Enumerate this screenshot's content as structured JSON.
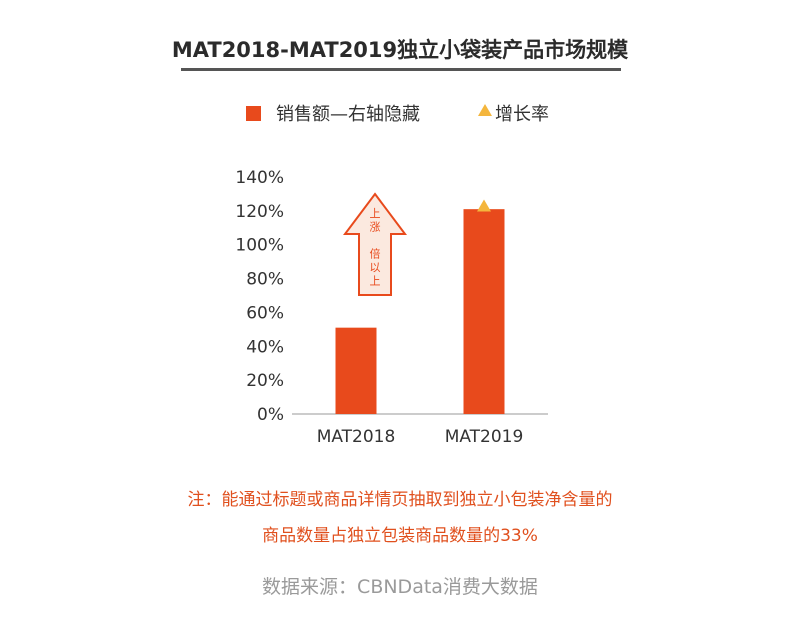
{
  "title": "MAT2018-MAT2019独立小袋装产品市场规模",
  "legend": {
    "bar_label": "销售额—右轴隐藏",
    "marker_label": "增长率"
  },
  "colors": {
    "bar": "#e84a1c",
    "marker": "#f4b63d",
    "arrow_stroke": "#e84a1c",
    "arrow_fill": "#fbe9df",
    "axis": "#9a9a9a"
  },
  "annotation": {
    "arrow_text": [
      "上",
      "涨",
      "",
      "倍",
      "以",
      "上"
    ]
  },
  "chart_data": {
    "type": "bar",
    "categories": [
      "MAT2018",
      "MAT2019"
    ],
    "series": [
      {
        "values": [
          null,
          122
        ]
      }
    ],
    "bar_values_hidden_axis": [
      51,
      121
    ],
    "yticks": [
      "0%",
      "20%",
      "40%",
      "60%",
      "80%",
      "100%",
      "120%",
      "140%"
    ],
    "ylim": [
      0,
      140
    ],
    "xlabel": "",
    "ylabel": "",
    "grid": false,
    "legend_position": "top"
  },
  "note": {
    "line1": "注：能通过标题或商品详情页抽取到独立小包装净含量的",
    "line2": "商品数量占独立包装商品数量的33%"
  },
  "source": "数据来源：CBNData消费大数据"
}
